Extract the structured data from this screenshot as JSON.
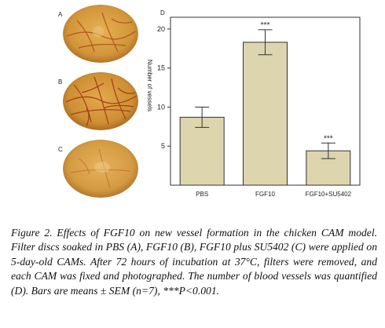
{
  "panels": {
    "a_label": "A",
    "b_label": "B",
    "c_label": "C",
    "d_label": "D"
  },
  "colors": {
    "bar_fill": "#ddd5ae",
    "bar_stroke": "#333333",
    "egg_base": "#d49a3a",
    "vessel": "#a8421c"
  },
  "chart_data": {
    "type": "bar",
    "categories": [
      "PBS",
      "FGF10",
      "FGF10+SU5402"
    ],
    "values": [
      8.7,
      18.3,
      4.4
    ],
    "errors": [
      1.3,
      1.6,
      1.0
    ],
    "significance": [
      "",
      "***",
      "***"
    ],
    "ylabel": "Number of vessels",
    "yticks": [
      5,
      10,
      15,
      20
    ],
    "ylim": [
      0,
      21.5
    ]
  },
  "caption": {
    "figure_label": "Figure 2.",
    "text": " Effects of FGF10 on new vessel formation in the chicken CAM model. Filter discs soaked in PBS (A), FGF10 (B), FGF10 plus SU5402 (C) were applied on 5-day-old CAMs. After 72 hours of incubation at 37°C, filters were removed, and each CAM was fixed and photographed. The number of blood vessels was quantified (D). Bars are means ± SEM (n=7), ***P<0.001."
  }
}
